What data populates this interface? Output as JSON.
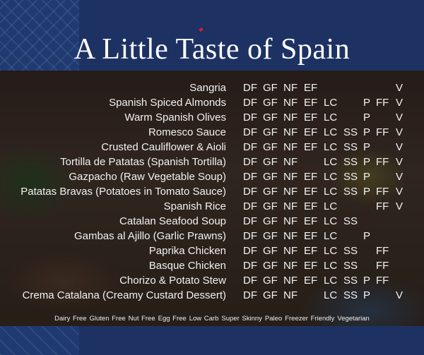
{
  "title": "A Little Taste of Spain",
  "rows": [
    {
      "name": "Sangria",
      "tags": [
        "DF",
        "GF",
        "NF",
        "EF",
        "",
        "",
        "",
        "",
        "V"
      ]
    },
    {
      "name": "Spanish Spiced Almonds",
      "tags": [
        "DF",
        "GF",
        "NF",
        "EF",
        "LC",
        "",
        "P",
        "FF",
        "V"
      ]
    },
    {
      "name": "Warm Spanish Olives",
      "tags": [
        "DF",
        "GF",
        "NF",
        "EF",
        "LC",
        "",
        "P",
        "",
        "V"
      ]
    },
    {
      "name": "Romesco Sauce",
      "tags": [
        "DF",
        "GF",
        "NF",
        "EF",
        "LC",
        "SS",
        "P",
        "FF",
        "V"
      ]
    },
    {
      "name": "Crusted Cauliflower & Aioli",
      "tags": [
        "DF",
        "GF",
        "NF",
        "EF",
        "LC",
        "SS",
        "P",
        "",
        "V"
      ]
    },
    {
      "name": "Tortilla de Patatas (Spanish Tortilla)",
      "tags": [
        "DF",
        "GF",
        "NF",
        "",
        "LC",
        "SS",
        "P",
        "FF",
        "V"
      ]
    },
    {
      "name": "Gazpacho (Raw Vegetable Soup)",
      "tags": [
        "DF",
        "GF",
        "NF",
        "EF",
        "LC",
        "SS",
        "P",
        "",
        "V"
      ]
    },
    {
      "name": "Patatas Bravas (Potatoes in Tomato Sauce)",
      "tags": [
        "DF",
        "GF",
        "NF",
        "EF",
        "LC",
        "SS",
        "P",
        "FF",
        "V"
      ]
    },
    {
      "name": "Spanish Rice",
      "tags": [
        "DF",
        "GF",
        "NF",
        "EF",
        "LC",
        "",
        "",
        "FF",
        "V"
      ]
    },
    {
      "name": "Catalan Seafood Soup",
      "tags": [
        "DF",
        "GF",
        "NF",
        "EF",
        "LC",
        "SS",
        "",
        "",
        ""
      ]
    },
    {
      "name": "Gambas al Ajillo (Garlic Prawns)",
      "tags": [
        "DF",
        "GF",
        "NF",
        "EF",
        "LC",
        "",
        "P",
        "",
        ""
      ]
    },
    {
      "name": "Paprika Chicken",
      "tags": [
        "DF",
        "GF",
        "NF",
        "EF",
        "LC",
        "SS",
        "",
        "FF",
        ""
      ]
    },
    {
      "name": "Basque Chicken",
      "tags": [
        "DF",
        "GF",
        "NF",
        "EF",
        "LC",
        "SS",
        "",
        "FF",
        ""
      ]
    },
    {
      "name": "Chorizo & Potato Stew",
      "tags": [
        "DF",
        "GF",
        "NF",
        "EF",
        "LC",
        "SS",
        "P",
        "FF",
        ""
      ]
    },
    {
      "name": "Crema Catalana (Creamy Custard Dessert)",
      "tags": [
        "DF",
        "GF",
        "NF",
        "",
        "LC",
        "SS",
        "P",
        "",
        "V"
      ]
    }
  ],
  "legend": [
    "Dairy Free",
    "Gluten Free",
    "Nut Free",
    "Egg Free",
    "Low Carb",
    "Super Skinny",
    "Paleo",
    "Freezer Friendly",
    "Vegetarian"
  ]
}
